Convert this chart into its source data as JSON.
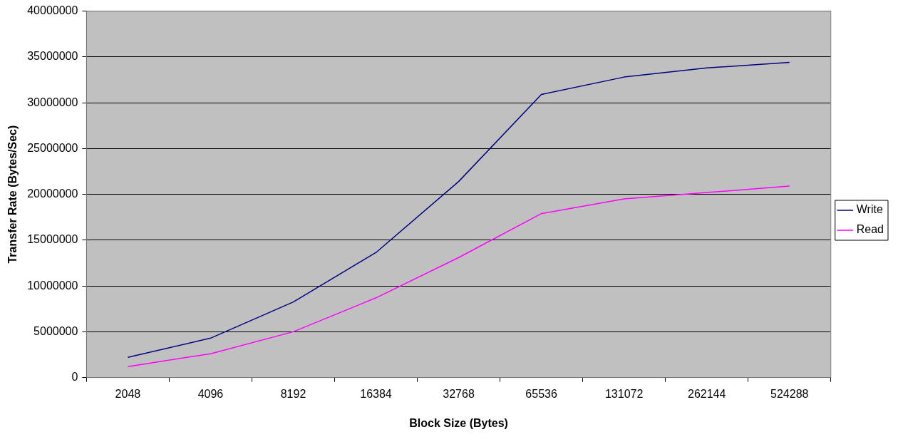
{
  "chart_data": {
    "type": "line",
    "xlabel": "Block Size (Bytes)",
    "ylabel": "Transfer Rate (Bytes/Sec)",
    "categories": [
      "2048",
      "4096",
      "8192",
      "16384",
      "32768",
      "65536",
      "131072",
      "262144",
      "524288"
    ],
    "series": [
      {
        "name": "Write",
        "color": "#000080",
        "values": [
          2200000,
          4300000,
          8250000,
          13650000,
          21400000,
          30900000,
          32800000,
          33800000,
          34400000
        ]
      },
      {
        "name": "Read",
        "color": "#ff00ff",
        "values": [
          1200000,
          2600000,
          5000000,
          8700000,
          13100000,
          17900000,
          19500000,
          20200000,
          20900000
        ]
      }
    ],
    "ylim": [
      0,
      40000000
    ],
    "yticks": [
      0,
      5000000,
      10000000,
      15000000,
      20000000,
      25000000,
      30000000,
      35000000,
      40000000
    ],
    "grid": "y",
    "legend": "right",
    "marker": "none",
    "line_style": "solid"
  }
}
